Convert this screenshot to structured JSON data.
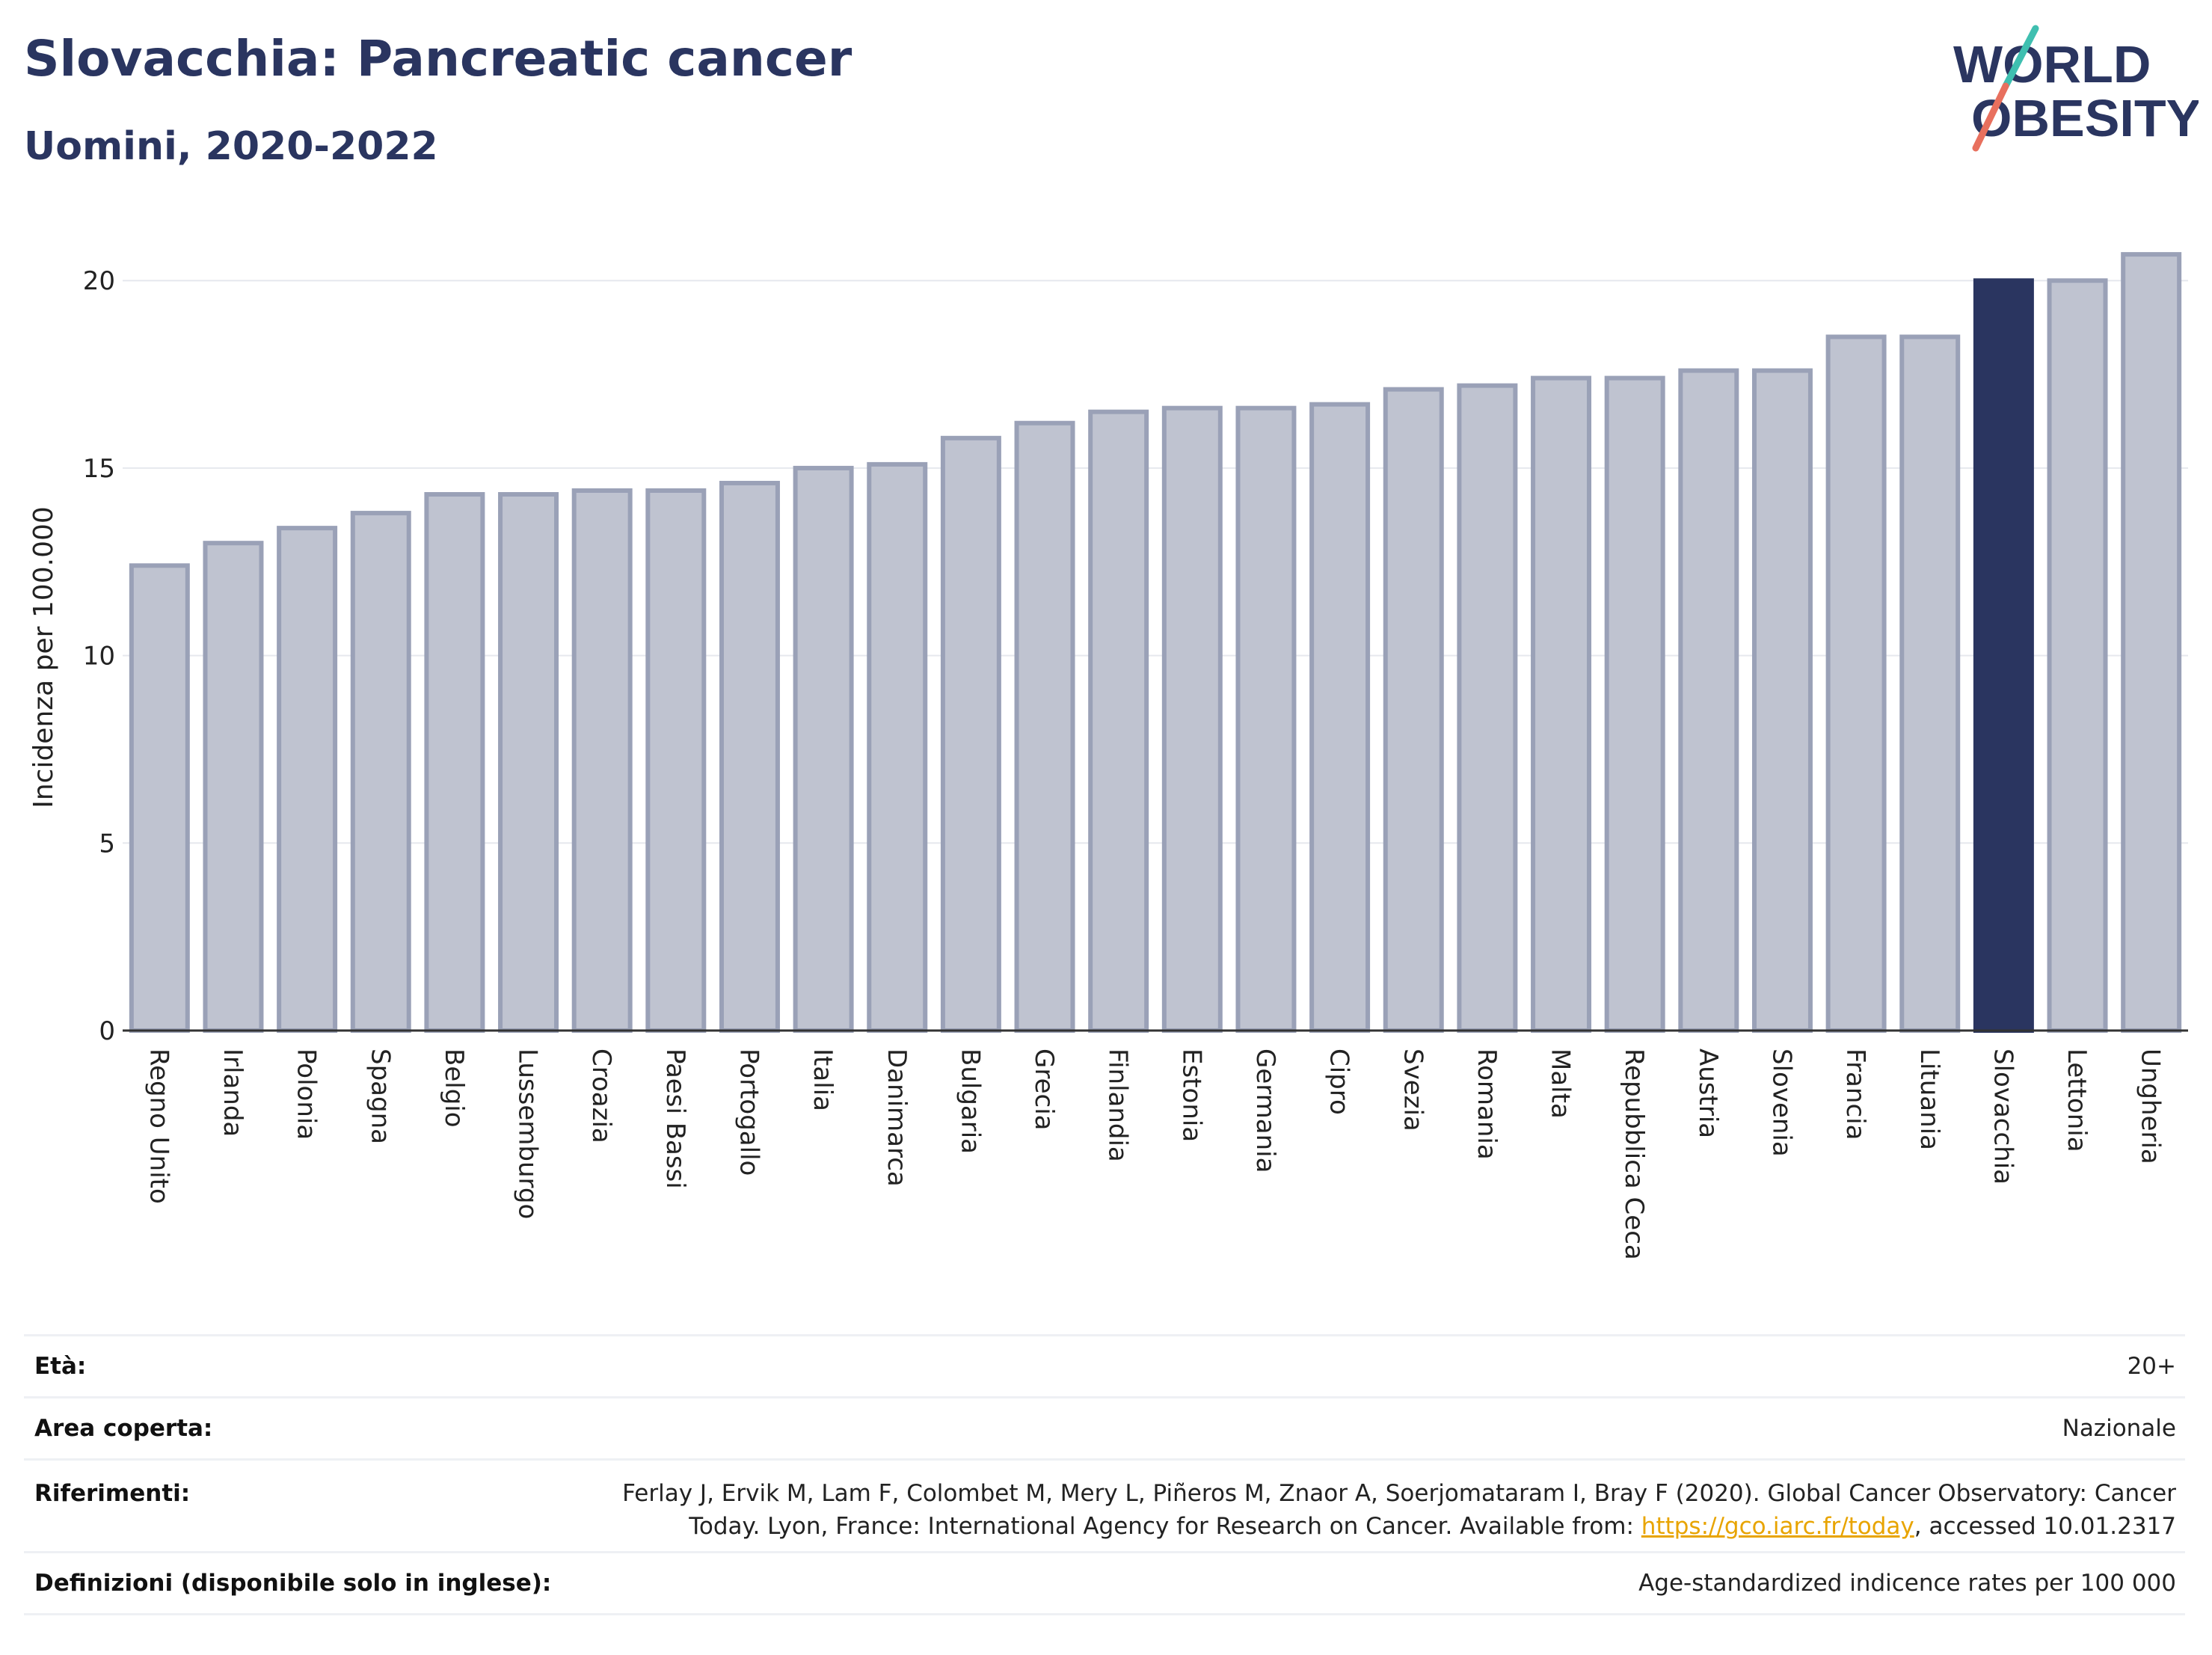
{
  "header": {
    "title": "Slovacchia: Pancreatic cancer",
    "subtitle": "Uomini, 2020-2022"
  },
  "logo": {
    "line1": "WORLD",
    "line2": "OBESITY",
    "colors": {
      "text": "#2a3560",
      "teal": "#3fbfb0",
      "coral": "#e8705e"
    }
  },
  "chart_data": {
    "type": "bar",
    "title": "Slovacchia: Pancreatic cancer",
    "subtitle": "Uomini, 2020-2022",
    "ylabel": "Incidenza per 100.000",
    "xlabel": "",
    "ylim": [
      0,
      21.5
    ],
    "yticks": [
      0,
      5,
      10,
      15,
      20
    ],
    "grid": true,
    "highlight": "Slovacchia",
    "colors": {
      "bar": "#bfc3d0",
      "bar_edge": "#9aa1b7",
      "highlight": "#2a3560"
    },
    "categories": [
      "Regno Unito",
      "Irlanda",
      "Polonia",
      "Spagna",
      "Belgio",
      "Lussemburgo",
      "Croazia",
      "Paesi Bassi",
      "Portogallo",
      "Italia",
      "Danimarca",
      "Bulgaria",
      "Grecia",
      "Finlandia",
      "Estonia",
      "Germania",
      "Cipro",
      "Svezia",
      "Romania",
      "Malta",
      "Repubblica Ceca",
      "Austria",
      "Slovenia",
      "Francia",
      "Lituania",
      "Slovacchia",
      "Lettonia",
      "Ungheria"
    ],
    "values": [
      12.4,
      13.0,
      13.4,
      13.8,
      14.3,
      14.3,
      14.4,
      14.4,
      14.6,
      15.0,
      15.1,
      15.8,
      16.2,
      16.5,
      16.6,
      16.6,
      16.7,
      17.1,
      17.2,
      17.4,
      17.4,
      17.6,
      17.6,
      18.5,
      18.5,
      20.0,
      20.0,
      20.7
    ]
  },
  "info": {
    "eta_label": "Età:",
    "eta_value": "20+",
    "area_label": "Area coperta:",
    "area_value": "Nazionale",
    "ref_label": "Riferimenti:",
    "ref_line1": "Ferlay J, Ervik M, Lam F, Colombet M, Mery L, Piñeros M, Znaor A, Soerjomataram I, Bray F (2020). Global Cancer Observatory: Cancer",
    "ref_line2_pre": "Today. Lyon, France: International Agency for Research on Cancer. Available from: ",
    "ref_link": "https://gco.iarc.fr/today",
    "ref_line2_post": ", accessed 10.01.2317",
    "def_label": "Definizioni (disponibile solo in inglese):",
    "def_value": "Age-standardized indicence rates per 100 000"
  }
}
